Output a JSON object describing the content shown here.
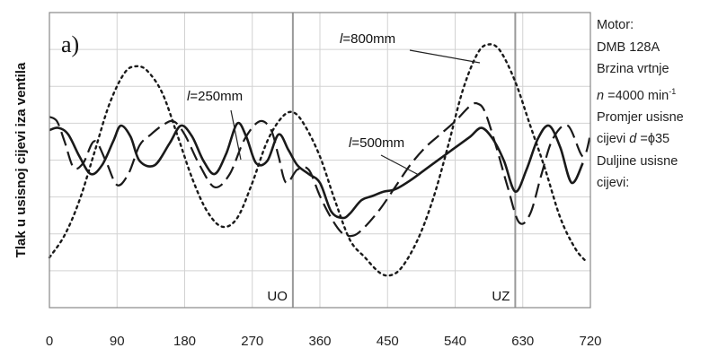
{
  "chart_data": {
    "type": "line",
    "panel_label": "a)",
    "ylabel": "Tlak u usisnoj cijevi iza ventila",
    "xlabel": "",
    "xlim": [
      0,
      720
    ],
    "ylim": [
      0,
      1
    ],
    "x_ticks": [
      "0",
      "90",
      "180",
      "270",
      "360",
      "450",
      "540",
      "630",
      "720"
    ],
    "vlines": [
      {
        "x": 324,
        "label": "UO"
      },
      {
        "x": 620,
        "label": "UZ"
      }
    ],
    "series": [
      {
        "name": "l=250mm",
        "label_italic": "l",
        "label_rest": "=250mm",
        "style": "solid",
        "x": [
          0,
          12,
          25,
          40,
          55,
          70,
          85,
          95,
          108,
          120,
          140,
          160,
          175,
          190,
          205,
          220,
          235,
          250,
          262,
          275,
          290,
          305,
          318,
          330,
          345,
          360,
          375,
          390,
          400,
          415,
          430,
          445,
          460,
          480,
          500,
          520,
          540,
          560,
          575,
          590,
          605,
          620,
          635,
          650,
          665,
          680,
          695,
          710
        ],
        "y": [
          0.6,
          0.61,
          0.58,
          0.48,
          0.4,
          0.44,
          0.55,
          0.62,
          0.57,
          0.46,
          0.44,
          0.54,
          0.62,
          0.57,
          0.46,
          0.4,
          0.49,
          0.63,
          0.57,
          0.45,
          0.46,
          0.58,
          0.51,
          0.44,
          0.4,
          0.36,
          0.23,
          0.2,
          0.22,
          0.28,
          0.3,
          0.32,
          0.33,
          0.37,
          0.42,
          0.47,
          0.52,
          0.57,
          0.61,
          0.56,
          0.46,
          0.32,
          0.42,
          0.56,
          0.62,
          0.52,
          0.36,
          0.45
        ]
      },
      {
        "name": "l=500mm",
        "label_italic": "l",
        "label_rest": "=500mm",
        "style": "dash",
        "x": [
          0,
          10,
          20,
          32,
          45,
          60,
          75,
          90,
          105,
          120,
          135,
          150,
          165,
          180,
          200,
          220,
          240,
          260,
          280,
          295,
          305,
          315,
          330,
          345,
          360,
          375,
          390,
          405,
          420,
          440,
          460,
          480,
          500,
          520,
          540,
          560,
          570,
          580,
          595,
          610,
          625,
          640,
          655,
          670,
          690,
          710,
          720
        ],
        "y": [
          0.66,
          0.64,
          0.55,
          0.43,
          0.45,
          0.55,
          0.46,
          0.35,
          0.4,
          0.53,
          0.58,
          0.62,
          0.64,
          0.58,
          0.44,
          0.34,
          0.4,
          0.56,
          0.64,
          0.6,
          0.48,
          0.36,
          0.42,
          0.42,
          0.3,
          0.2,
          0.13,
          0.12,
          0.16,
          0.24,
          0.34,
          0.44,
          0.52,
          0.58,
          0.64,
          0.71,
          0.72,
          0.68,
          0.52,
          0.34,
          0.18,
          0.22,
          0.4,
          0.56,
          0.62,
          0.48,
          0.58
        ]
      },
      {
        "name": "l=800mm",
        "label_italic": "l",
        "label_rest": "=800mm",
        "style": "dot",
        "x": [
          0,
          20,
          40,
          60,
          80,
          100,
          115,
          130,
          150,
          170,
          190,
          210,
          230,
          250,
          270,
          290,
          310,
          325,
          340,
          360,
          380,
          400,
          420,
          440,
          455,
          470,
          490,
          510,
          530,
          550,
          570,
          585,
          600,
          620,
          640,
          660,
          680,
          700,
          715
        ],
        "y": [
          0.02,
          0.12,
          0.28,
          0.5,
          0.72,
          0.86,
          0.89,
          0.87,
          0.77,
          0.58,
          0.38,
          0.23,
          0.16,
          0.2,
          0.36,
          0.55,
          0.66,
          0.68,
          0.62,
          0.48,
          0.28,
          0.1,
          0.02,
          -0.05,
          -0.06,
          -0.02,
          0.1,
          0.28,
          0.52,
          0.78,
          0.95,
          0.99,
          0.96,
          0.82,
          0.62,
          0.42,
          0.2,
          0.06,
          0.0
        ]
      }
    ]
  },
  "info_panel": {
    "lines": [
      {
        "pre": "Motor:"
      },
      {
        "pre": "DMB 128A"
      },
      {
        "pre": "Brzina vrtnje"
      },
      {
        "pre": "",
        "it": "n",
        "post": " =4000 min",
        "sup": "-1"
      },
      {
        "pre": "Promjer usisne"
      },
      {
        "pre": "cijevi ",
        "it": "d",
        "post": " =ϕ35"
      },
      {
        "pre": "Duljine usisne"
      },
      {
        "pre": "cijevi:"
      }
    ]
  }
}
